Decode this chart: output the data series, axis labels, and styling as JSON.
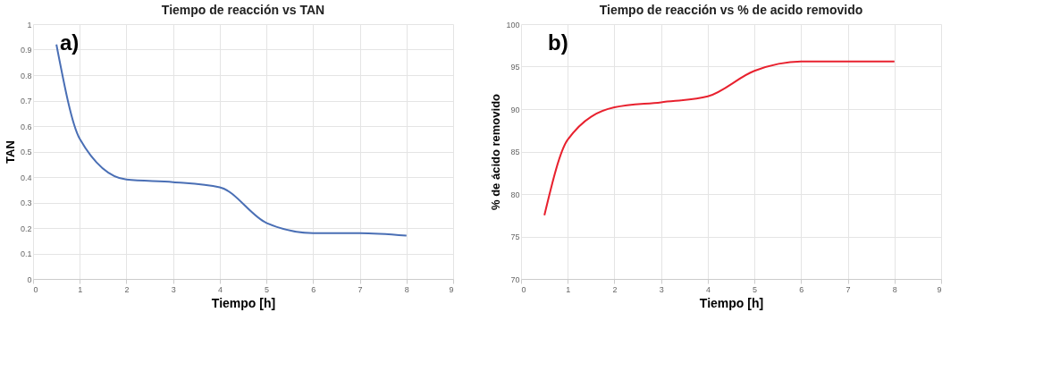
{
  "chart_data": [
    {
      "type": "line",
      "title": "Tiempo de reacción vs TAN",
      "xlabel": "Tiempo [h]",
      "ylabel": "TAN",
      "annotations": [
        "a)"
      ],
      "x": [
        0.5,
        1,
        2,
        3,
        4,
        5,
        6,
        7,
        8
      ],
      "series": [
        {
          "color": "#4a6fb5",
          "values": [
            0.92,
            0.55,
            0.39,
            0.38,
            0.36,
            0.22,
            0.18,
            0.18,
            0.17
          ]
        }
      ],
      "xlim": [
        0,
        9
      ],
      "xticks": [
        0,
        1,
        2,
        3,
        4,
        5,
        6,
        7,
        8,
        9
      ],
      "ylim": [
        0,
        1
      ],
      "yticks": [
        0,
        0.1,
        0.2,
        0.3,
        0.4,
        0.5,
        0.6,
        0.7,
        0.8,
        0.9,
        1
      ],
      "grid": true,
      "marker": "none",
      "line_style": "solid"
    },
    {
      "type": "line",
      "title": "Tiempo de reacción vs % de acido removido",
      "xlabel": "Tiempo [h]",
      "ylabel": "% de ácido removido",
      "annotations": [
        "b)"
      ],
      "x": [
        0.5,
        1,
        2,
        3,
        4,
        5,
        6,
        7,
        8
      ],
      "series": [
        {
          "color": "#e8212e",
          "values": [
            77.5,
            86.4,
            90.2,
            90.8,
            91.5,
            94.5,
            95.6,
            95.6,
            95.6
          ]
        }
      ],
      "xlim": [
        0,
        9
      ],
      "xticks": [
        0,
        1,
        2,
        3,
        4,
        5,
        6,
        7,
        8,
        9
      ],
      "ylim": [
        70,
        100
      ],
      "yticks": [
        70,
        75,
        80,
        85,
        90,
        95,
        100
      ],
      "grid": true,
      "marker": "none",
      "line_style": "solid"
    }
  ]
}
